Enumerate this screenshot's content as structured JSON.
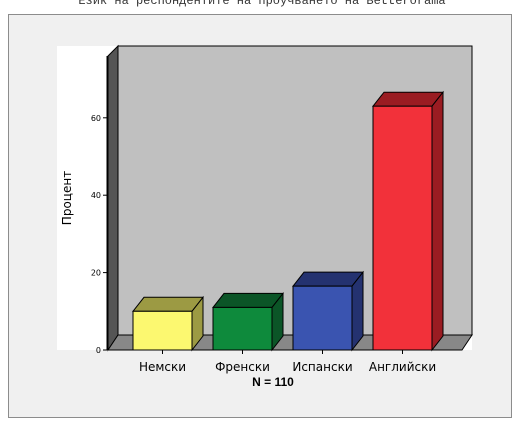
{
  "chart_data": {
    "type": "bar",
    "title": "Език на респондентите на проучването на Betterorama",
    "categories": [
      "Немски",
      "Френски",
      "Испански",
      "Английски"
    ],
    "values": [
      10,
      11,
      16.5,
      63
    ],
    "ylabel": "Процент",
    "xlabel": "N = 110",
    "yticks": [
      0,
      20,
      40,
      60
    ],
    "ylim": [
      0,
      70
    ],
    "grid": false,
    "colors": [
      "#fcf870",
      "#0e8a3c",
      "#3a54b0",
      "#f2313a"
    ],
    "side_colors": [
      "#9c9a43",
      "#0b5527",
      "#243270",
      "#9a1c22"
    ]
  }
}
